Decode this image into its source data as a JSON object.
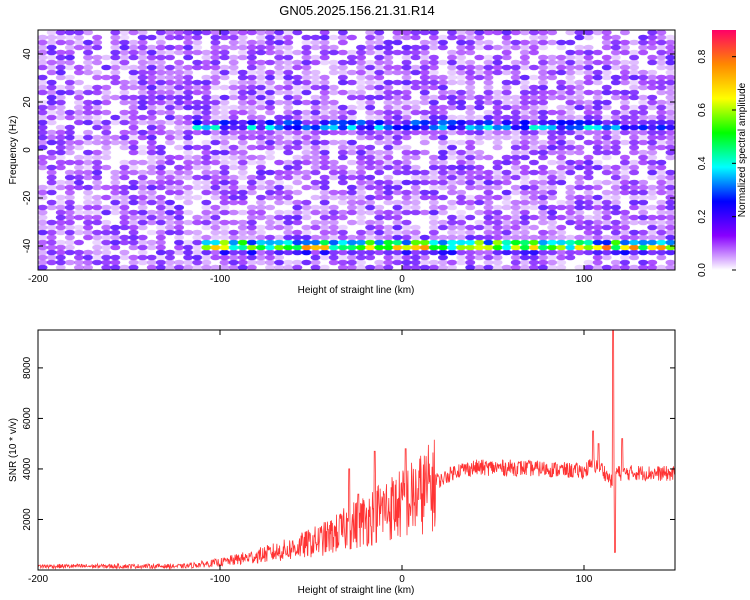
{
  "title": "GN05.2025.156.21.31.R14",
  "chart_data": [
    {
      "type": "heatmap",
      "xlabel": "Height of straight line (km)",
      "ylabel": "Frequency (Hz)",
      "xlim": [
        -200,
        150
      ],
      "ylim": [
        -50,
        50
      ],
      "xticks": [
        -200,
        -100,
        0,
        100
      ],
      "yticks": [
        -40,
        -20,
        0,
        20,
        40
      ],
      "colorbar": {
        "label": "Normalized spectral amplitude",
        "range": [
          0,
          0.9
        ],
        "ticks": [
          0.0,
          0.2,
          0.4,
          0.6,
          0.8
        ],
        "tick_labels": [
          "0.0",
          "0.2",
          "0.4",
          "0.6",
          "0.8"
        ],
        "colormap": [
          "#ffffff",
          "#8800ff",
          "#0000ff",
          "#00ffff",
          "#00ff00",
          "#ffff00",
          "#ff8800",
          "#ff0066"
        ]
      },
      "bands": [
        {
          "frequency": 10,
          "x_start": -115,
          "x_end": 150,
          "peak_amplitude": 0.45
        },
        {
          "frequency": -40,
          "x_start": -110,
          "x_end": 150,
          "peak_amplitude": 0.85
        }
      ],
      "background_noise": {
        "x_range": [
          -200,
          150
        ],
        "amplitude_level": 0.12
      }
    },
    {
      "type": "line",
      "xlabel": "Height of straight line (km)",
      "ylabel": "SNR (10 * v/v)",
      "xlim": [
        -200,
        150
      ],
      "ylim": [
        0,
        9500
      ],
      "xticks": [
        -200,
        -100,
        0,
        100
      ],
      "yticks": [
        2000,
        4000,
        6000,
        8000
      ],
      "color": "#ff3333",
      "envelope": {
        "x": [
          -200,
          -150,
          -120,
          -100,
          -80,
          -60,
          -40,
          -20,
          -10,
          0,
          10,
          20,
          30,
          40,
          60,
          80,
          100,
          105,
          110,
          115,
          118,
          120,
          125,
          130,
          150
        ],
        "y": [
          150,
          150,
          150,
          300,
          550,
          850,
          1300,
          2000,
          2400,
          2600,
          3000,
          3500,
          3950,
          4050,
          4050,
          4000,
          3900,
          4200,
          4000,
          3500,
          3900,
          3800,
          3850,
          3850,
          3800
        ]
      },
      "spikes": [
        {
          "x": -29,
          "y": 4000
        },
        {
          "x": -24,
          "y": 3000
        },
        {
          "x": -15,
          "y": 4700
        },
        {
          "x": 2,
          "y": 4800
        },
        {
          "x": 105,
          "y": 5500
        },
        {
          "x": 108,
          "y": 5000
        },
        {
          "x": 116,
          "y": 9500
        },
        {
          "x": 117,
          "y": 700
        },
        {
          "x": 121,
          "y": 5200
        }
      ]
    }
  ]
}
